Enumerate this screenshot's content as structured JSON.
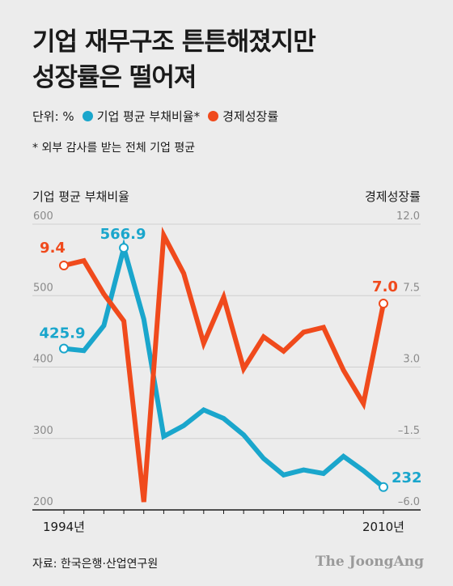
{
  "chart_data": {
    "type": "line",
    "title": [
      "기업 재무구조 튼튼해졌지만",
      "성장률은 떨어져"
    ],
    "unit_label": "단위: %",
    "note": "* 외부 감사를 받는 전체 기업 평균",
    "source": "자료: 한국은행·산업연구원",
    "brand": "The JoongAng",
    "left_axis": {
      "label": "기업 평균 부채비율",
      "ylim": [
        200,
        600
      ],
      "ticks": [
        "600",
        "500",
        "400",
        "300",
        "200"
      ]
    },
    "right_axis": {
      "label": "경제성장률",
      "ylim": [
        -6.0,
        12.0
      ],
      "ticks": [
        "12.0",
        "7.5",
        "3.0",
        "-1.5",
        "-6.0"
      ]
    },
    "x_tick_labels": [
      "1994년",
      "2010년"
    ],
    "x": [
      1994,
      1995,
      1996,
      1997,
      1998,
      1999,
      2000,
      2001,
      2002,
      2003,
      2004,
      2005,
      2006,
      2007,
      2008,
      2009,
      2010
    ],
    "series": [
      {
        "name": "기업 평균 부채비율",
        "axis": "left",
        "color": "#1aa6cc",
        "values": [
          425.9,
          423,
          458,
          566.9,
          467,
          303,
          318,
          340,
          328,
          305,
          272,
          249,
          256,
          251,
          275,
          255,
          232
        ],
        "labels": [
          {
            "index": 0,
            "text": "425.9"
          },
          {
            "index": 3,
            "text": "566.9"
          },
          {
            "index": 16,
            "text": "232"
          }
        ]
      },
      {
        "name": "경제성장률",
        "axis": "right",
        "color": "#f04a1c",
        "values": [
          9.4,
          9.7,
          7.6,
          5.9,
          -5.5,
          11.3,
          8.9,
          4.5,
          7.4,
          2.9,
          4.9,
          4.0,
          5.2,
          5.5,
          2.8,
          0.7,
          7.0
        ],
        "labels": [
          {
            "index": 0,
            "text": "9.4"
          },
          {
            "index": 16,
            "text": "7.0"
          }
        ]
      }
    ]
  }
}
